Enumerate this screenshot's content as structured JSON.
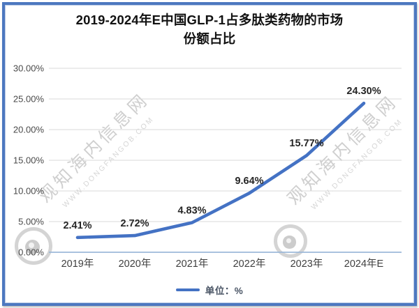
{
  "title_lines": [
    "2019-2024年E中国GLP-1占多肽类药物的市场",
    "份额占比"
  ],
  "watermark": {
    "name": "观知海内信息网",
    "url": "WWW.DONGFANGOB.COM"
  },
  "legend": {
    "label": "单位：%"
  },
  "colors": {
    "line": "#4472C4",
    "border": "#4d78c0",
    "axis": "#9db9d9",
    "gridline": "#d9d9d9"
  },
  "chart_data": {
    "type": "line",
    "title": "2019-2024年E中国GLP-1占多肽类药物的市场份额占比",
    "categories": [
      "2019年",
      "2020年",
      "2021年",
      "2022年",
      "2023年",
      "2024年E"
    ],
    "values": [
      2.41,
      2.72,
      4.83,
      9.64,
      15.77,
      24.3
    ],
    "data_labels": [
      "2.41%",
      "2.72%",
      "4.83%",
      "9.64%",
      "15.77%",
      "24.30%"
    ],
    "unit": "%",
    "xlabel": "",
    "ylabel": "",
    "ylim": [
      0,
      30
    ],
    "yticks": [
      0,
      5,
      10,
      15,
      20,
      25,
      30
    ],
    "ytick_labels": [
      "0.00%",
      "5.00%",
      "10.00%",
      "15.00%",
      "20.00%",
      "25.00%",
      "30.00%"
    ],
    "grid": true,
    "legend_position": "bottom",
    "legend_entries": [
      "单位：%"
    ]
  }
}
